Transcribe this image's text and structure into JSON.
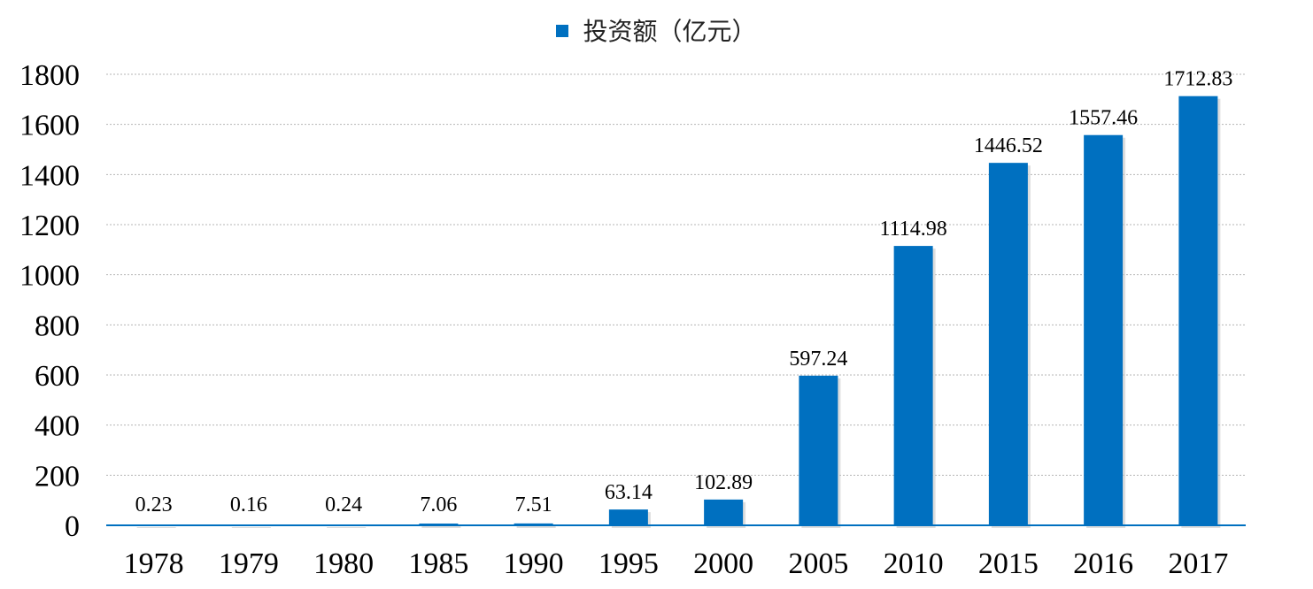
{
  "chart_data": {
    "type": "bar",
    "title": "",
    "xlabel": "",
    "ylabel": "",
    "legend": {
      "position": "top-center"
    },
    "grid": true,
    "ylim": [
      0,
      1800
    ],
    "yticks": [
      0,
      200,
      400,
      600,
      800,
      1000,
      1200,
      1400,
      1600,
      1800
    ],
    "categories": [
      "1978",
      "1979",
      "1980",
      "1985",
      "1990",
      "1995",
      "2000",
      "2005",
      "2010",
      "2015",
      "2016",
      "2017"
    ],
    "series": [
      {
        "name": "投资额（亿元）",
        "color": "#0070C0",
        "values": [
          0.23,
          0.16,
          0.24,
          7.06,
          7.51,
          63.14,
          102.89,
          597.24,
          1114.98,
          1446.52,
          1557.46,
          1712.83
        ],
        "labels": [
          "0.23",
          "0.16",
          "0.24",
          "7.06",
          "7.51",
          "63.14",
          "102.89",
          "597.24",
          "1114.98",
          "1446.52",
          "1557.46",
          "1712.83"
        ]
      }
    ]
  }
}
